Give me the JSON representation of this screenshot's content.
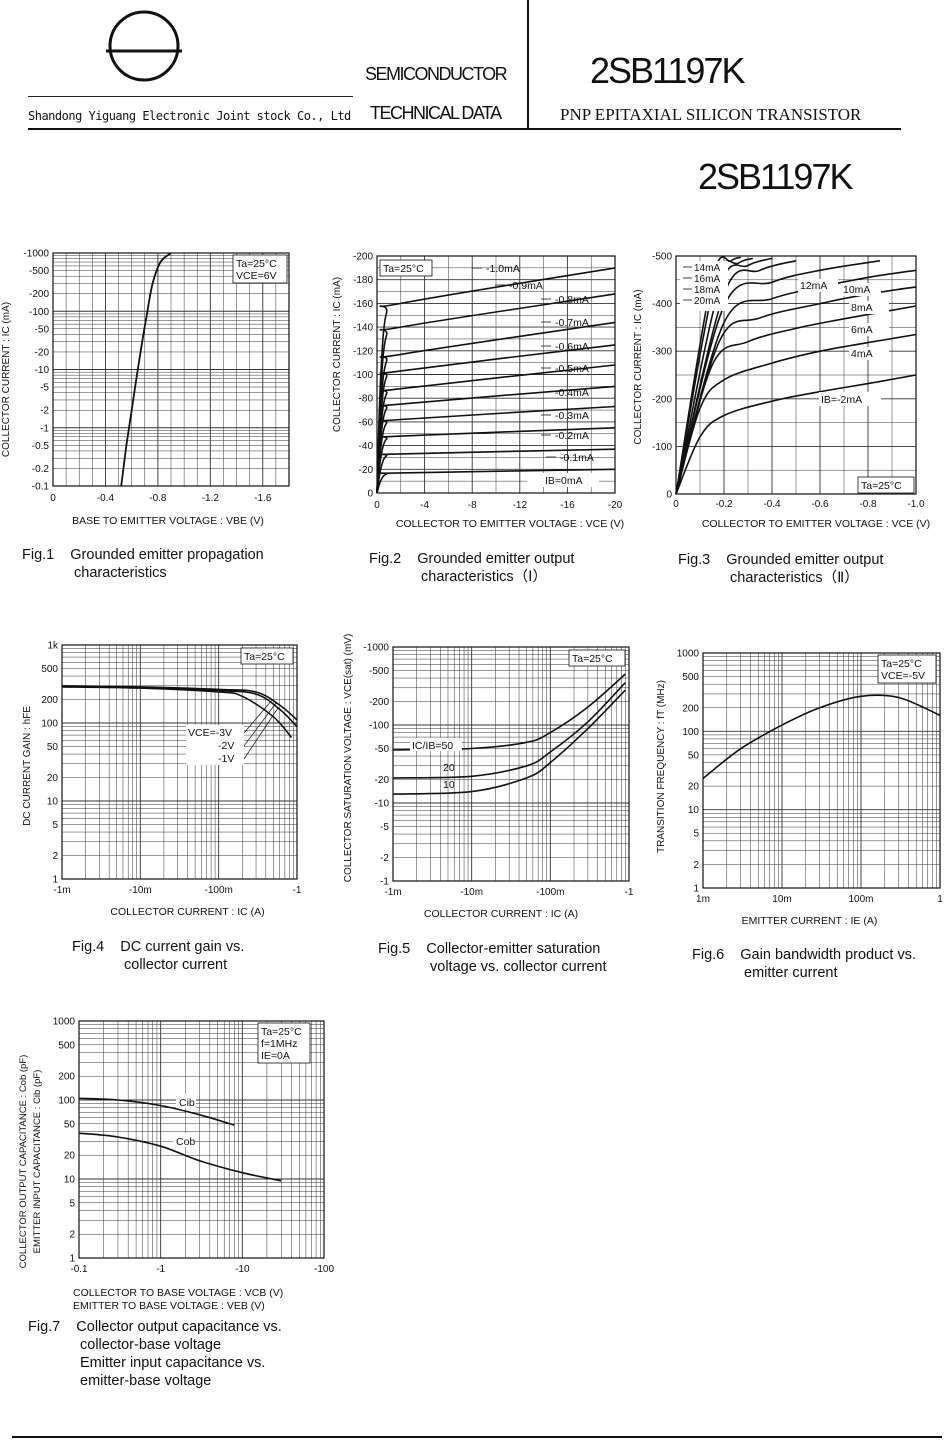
{
  "header": {
    "company": "Shandong Yiguang Electronic Joint stock Co., Ltd",
    "semiconductor": "SEMICONDUCTOR",
    "technical_data": "TECHNICAL DATA",
    "part_top": "2SB1197K",
    "description": "PNP EPITAXIAL SILICON TRANSISTOR",
    "part_title": "2SB1197K"
  },
  "chart_data": [
    {
      "id": "fig1",
      "type": "line",
      "title": "Fig.1  Grounded emitter propagation characteristics",
      "xlabel": "BASE TO EMITTER VOLTAGE : VBE (V)",
      "ylabel": "COLLECTOR CURRENT : IC (mA)",
      "xticks": [
        "0",
        "-0.4",
        "-0.8",
        "-1.2",
        "-1.6"
      ],
      "yticks": [
        "-1000",
        "-500",
        "-200",
        "-100",
        "-50",
        "-20",
        "-10",
        "-5",
        "-2",
        "-1",
        "-0.5",
        "-0.2",
        "-0.1"
      ],
      "legend": [
        "Ta=25°C",
        "VCE=6V"
      ],
      "xlim": [
        0,
        -1.8
      ],
      "ylim": [
        -0.1,
        -1000
      ],
      "yscale": "log",
      "series": [
        {
          "x": [
            -0.52,
            -0.56,
            -0.6,
            -0.64,
            -0.68,
            -0.72,
            -0.76,
            -0.82,
            -0.9
          ],
          "y": [
            -0.1,
            -0.5,
            -2,
            -8,
            -30,
            -100,
            -300,
            -700,
            -1000
          ]
        }
      ]
    },
    {
      "id": "fig2",
      "type": "line",
      "title": "Fig.2  Grounded emitter output characteristics (Ⅰ)",
      "xlabel": "COLLECTOR TO EMITTER VOLTAGE : VCE (V)",
      "ylabel": "COLLECTOR CURRENT : IC (mA)",
      "xticks": [
        "0",
        "-4",
        "-8",
        "-12",
        "-16",
        "-20"
      ],
      "yticks": [
        "-200",
        "-180",
        "-160",
        "-140",
        "-120",
        "-100",
        "-80",
        "-60",
        "-40",
        "-20",
        "0"
      ],
      "legend": [
        "Ta=25°C"
      ],
      "curve_labels": [
        "-1.0mA",
        "-0.9mA",
        "-0.8mA",
        "-0.7mA",
        "-0.6mA",
        "-0.5mA",
        "-0.4mA",
        "-0.3mA",
        "-0.2mA",
        "-0.1mA",
        "IB=0mA"
      ],
      "xlim": [
        0,
        -20
      ],
      "ylim": [
        0,
        -200
      ],
      "series": [
        {
          "name": "IB=0mA",
          "values": [
            0,
            0
          ]
        },
        {
          "name": "-0.1mA",
          "sat": -17,
          "end": -20
        },
        {
          "name": "-0.2mA",
          "sat": -33,
          "end": -37
        },
        {
          "name": "-0.3mA",
          "sat": -48,
          "end": -55
        },
        {
          "name": "-0.4mA",
          "sat": -62,
          "end": -73
        },
        {
          "name": "-0.5mA",
          "sat": -75,
          "end": -90
        },
        {
          "name": "-0.6mA",
          "sat": -88,
          "end": -108
        },
        {
          "name": "-0.7mA",
          "sat": -103,
          "end": -125
        },
        {
          "name": "-0.8mA",
          "sat": -117,
          "end": -144
        },
        {
          "name": "-0.9mA",
          "sat": -140,
          "end": -168
        },
        {
          "name": "-1.0mA",
          "sat": -160,
          "end": -190
        }
      ]
    },
    {
      "id": "fig3",
      "type": "line",
      "title": "Fig.3  Grounded emitter output characteristics (Ⅱ)",
      "xlabel": "COLLECTOR TO EMITTER VOLTAGE : VCE (V)",
      "ylabel": "COLLECTOR CURRENT : IC (mA)",
      "xticks": [
        "0",
        "-0.2",
        "-0.4",
        "-0.6",
        "-0.8",
        "-1.0"
      ],
      "yticks": [
        "-500",
        "-400",
        "-300",
        "-200",
        "-100",
        "0"
      ],
      "legend": [
        "Ta=25°C"
      ],
      "curve_labels": [
        "14mA",
        "16mA",
        "18mA",
        "20mA",
        "12mA",
        "10mA",
        "8mA",
        "6mA",
        "4mA",
        "IB=-2mA"
      ],
      "xlim": [
        0,
        -1.0
      ],
      "ylim": [
        0,
        -500
      ],
      "series": [
        {
          "name": "IB=-2mA",
          "values": [
            [
              0,
              0
            ],
            [
              -0.1,
              -120
            ],
            [
              -0.2,
              -165
            ],
            [
              -0.4,
              -195
            ],
            [
              -0.6,
              -215
            ],
            [
              -0.8,
              -232
            ],
            [
              -1.0,
              -250
            ]
          ]
        },
        {
          "name": "-4mA",
          "values": [
            [
              0,
              0
            ],
            [
              -0.1,
              -180
            ],
            [
              -0.2,
              -240
            ],
            [
              -0.4,
              -275
            ],
            [
              -0.6,
              -300
            ],
            [
              -0.8,
              -318
            ],
            [
              -1.0,
              -335
            ]
          ]
        },
        {
          "name": "-6mA",
          "values": [
            [
              0,
              0
            ],
            [
              -0.15,
              -270
            ],
            [
              -0.3,
              -320
            ],
            [
              -0.5,
              -348
            ],
            [
              -0.7,
              -368
            ],
            [
              -1.0,
              -395
            ]
          ]
        },
        {
          "name": "-8mA",
          "values": [
            [
              0,
              0
            ],
            [
              -0.18,
              -320
            ],
            [
              -0.35,
              -370
            ],
            [
              -0.6,
              -400
            ],
            [
              -0.8,
              -420
            ],
            [
              -1.0,
              -435
            ]
          ]
        },
        {
          "name": "-10mA",
          "values": [
            [
              0,
              0
            ],
            [
              -0.2,
              -360
            ],
            [
              -0.4,
              -410
            ],
            [
              -0.6,
              -435
            ],
            [
              -0.8,
              -455
            ],
            [
              -1.0,
              -470
            ]
          ]
        },
        {
          "name": "-12mA",
          "values": [
            [
              0,
              0
            ],
            [
              -0.2,
              -395
            ],
            [
              -0.4,
              -445
            ],
            [
              -0.6,
              -470
            ],
            [
              -0.85,
              -490
            ]
          ]
        },
        {
          "name": "14mA",
          "values": [
            [
              0,
              0
            ],
            [
              -0.2,
              -420
            ],
            [
              -0.35,
              -470
            ],
            [
              -0.5,
              -490
            ]
          ]
        },
        {
          "name": "16mA",
          "values": [
            [
              0,
              0
            ],
            [
              -0.18,
              -430
            ],
            [
              -0.3,
              -480
            ],
            [
              -0.4,
              -495
            ]
          ]
        },
        {
          "name": "18mA",
          "values": [
            [
              0,
              0
            ],
            [
              -0.16,
              -440
            ],
            [
              -0.26,
              -485
            ],
            [
              -0.32,
              -495
            ]
          ]
        },
        {
          "name": "20mA",
          "values": [
            [
              0,
              0
            ],
            [
              -0.15,
              -450
            ],
            [
              -0.23,
              -490
            ],
            [
              -0.27,
              -497
            ]
          ]
        }
      ]
    },
    {
      "id": "fig4",
      "type": "line",
      "title": "Fig.4  DC current gain vs. collector current",
      "xlabel": "COLLECTOR CURRENT : IC (A)",
      "ylabel": "DC CURRENT GAIN : hFE",
      "xticks": [
        "-1m",
        "-10m",
        "-100m",
        "-1"
      ],
      "yticks": [
        "1k",
        "500",
        "200",
        "100",
        "50",
        "20",
        "10",
        "5",
        "2",
        "1"
      ],
      "legend": [
        "Ta=25°C"
      ],
      "curve_labels": [
        "VCE=-3V",
        "-2V",
        "-1V"
      ],
      "xscale": "log",
      "yscale": "log",
      "xlim": [
        0.001,
        1
      ],
      "ylim": [
        1,
        1000
      ],
      "series": [
        {
          "name": "VCE=-3V",
          "x": [
            0.001,
            0.01,
            0.1,
            0.3,
            0.6,
            1
          ],
          "y": [
            300,
            290,
            270,
            250,
            170,
            110
          ]
        },
        {
          "name": "-2V",
          "x": [
            0.001,
            0.01,
            0.1,
            0.3,
            0.6,
            1
          ],
          "y": [
            295,
            285,
            260,
            235,
            150,
            90
          ]
        },
        {
          "name": "-1V",
          "x": [
            0.001,
            0.01,
            0.1,
            0.2,
            0.5,
            0.85
          ],
          "y": [
            290,
            280,
            250,
            220,
            120,
            65
          ]
        }
      ]
    },
    {
      "id": "fig5",
      "type": "line",
      "title": "Fig.5  Collector-emitter saturation voltage vs. collector current",
      "xlabel": "COLLECTOR CURRENT : IC (A)",
      "ylabel": "COLLECTOR SATURATION VOLTAGE : VCE(sat) (mV)",
      "xticks": [
        "-1m",
        "-10m",
        "-100m",
        "-1"
      ],
      "yticks": [
        "-1000",
        "-500",
        "-200",
        "-100",
        "-50",
        "-20",
        "-10",
        "-5",
        "-2",
        "-1"
      ],
      "legend": [
        "Ta=25°C"
      ],
      "curve_labels": [
        "IC/IB=50",
        "20",
        "10"
      ],
      "xscale": "log",
      "yscale": "log",
      "xlim": [
        0.001,
        1
      ],
      "ylim": [
        1,
        1000
      ],
      "series": [
        {
          "name": "IC/IB=50",
          "x": [
            0.001,
            0.01,
            0.05,
            0.1,
            0.3,
            0.9
          ],
          "y": [
            48,
            50,
            60,
            80,
            170,
            450
          ]
        },
        {
          "name": "20",
          "x": [
            0.001,
            0.01,
            0.05,
            0.1,
            0.3,
            0.9
          ],
          "y": [
            21,
            22,
            30,
            45,
            110,
            350
          ]
        },
        {
          "name": "10",
          "x": [
            0.001,
            0.01,
            0.05,
            0.1,
            0.3,
            0.9
          ],
          "y": [
            13,
            14,
            21,
            33,
            90,
            280
          ]
        }
      ]
    },
    {
      "id": "fig6",
      "type": "line",
      "title": "Fig.6  Gain bandwidth product vs. emitter current",
      "xlabel": "EMITTER CURRENT : IE (A)",
      "ylabel": "TRANSITION FREQUENCY : fT (MHz)",
      "xticks": [
        "1m",
        "10m",
        "100m",
        "1"
      ],
      "yticks": [
        "1000",
        "500",
        "200",
        "100",
        "50",
        "20",
        "10",
        "5",
        "2",
        "1"
      ],
      "legend": [
        "Ta=25°C",
        "VCE=-5V"
      ],
      "xscale": "log",
      "yscale": "log",
      "xlim": [
        0.001,
        1
      ],
      "ylim": [
        1,
        1000
      ],
      "series": [
        {
          "name": "fT",
          "x": [
            0.001,
            0.003,
            0.01,
            0.03,
            0.1,
            0.3,
            1
          ],
          "y": [
            25,
            60,
            120,
            200,
            280,
            270,
            160
          ]
        }
      ]
    },
    {
      "id": "fig7",
      "type": "line",
      "title": "Fig.7  Collector output capacitance vs. collector-base voltage / Emitter input capacitance vs. emitter-base voltage",
      "xlabel": "COLLECTOR TO BASE VOLTAGE : VCB (V) / EMITTER TO BASE VOLTAGE : VEB (V)",
      "ylabel": "COLLECTOR OUTPUT CAPACITANCE : Cob (pF) / EMITTER INPUT CAPACITANCE : Cib (pF)",
      "xticks": [
        "-0.1",
        "-1",
        "-10",
        "-100"
      ],
      "yticks": [
        "1000",
        "500",
        "200",
        "100",
        "50",
        "20",
        "10",
        "5",
        "2",
        "1"
      ],
      "legend": [
        "Ta=25°C",
        "f=1MHz",
        "IE=0A"
      ],
      "curve_labels": [
        "Cib",
        "Cob"
      ],
      "xscale": "log",
      "yscale": "log",
      "xlim": [
        0.1,
        100
      ],
      "ylim": [
        1,
        1000
      ],
      "series": [
        {
          "name": "Cib",
          "x": [
            0.1,
            0.3,
            1,
            3,
            8
          ],
          "y": [
            105,
            100,
            85,
            65,
            48
          ]
        },
        {
          "name": "Cob",
          "x": [
            0.1,
            0.3,
            1,
            3,
            10,
            30
          ],
          "y": [
            38,
            34,
            26,
            17,
            12,
            9.5
          ]
        }
      ]
    }
  ],
  "captions": {
    "fig1": [
      "Fig.1",
      "Grounded emitter propagation",
      "characteristics"
    ],
    "fig2": [
      "Fig.2",
      "Grounded emitter output",
      "characteristics（Ⅰ）"
    ],
    "fig3": [
      "Fig.3",
      "Grounded emitter output",
      "characteristics（Ⅱ）"
    ],
    "fig4": [
      "Fig.4",
      "DC current gain vs.",
      "collector current"
    ],
    "fig5": [
      "Fig.5",
      "Collector-emitter saturation",
      "voltage vs. collector current"
    ],
    "fig6": [
      "Fig.6",
      "Gain bandwidth product vs.",
      "emitter current"
    ],
    "fig7": [
      "Fig.7",
      "Collector output capacitance vs.",
      "collector-base voltage",
      "Emitter input capacitance vs.",
      "emitter-base voltage"
    ]
  }
}
